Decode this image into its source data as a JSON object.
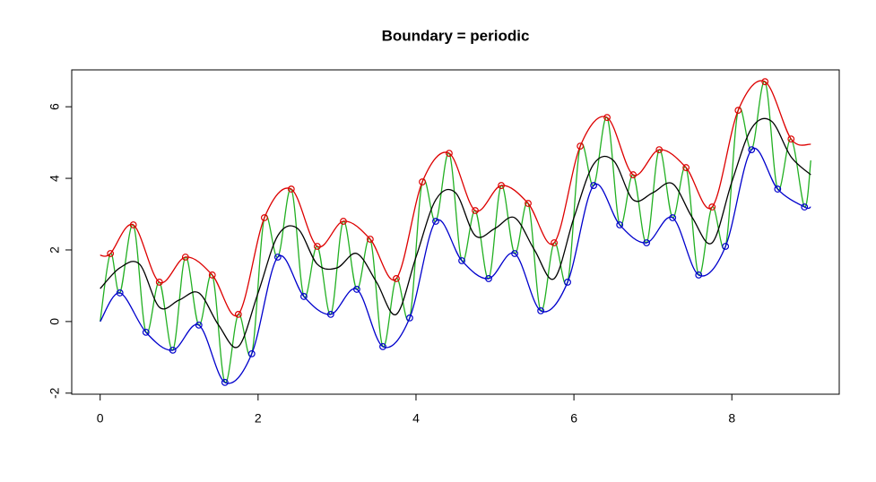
{
  "chart_data": {
    "type": "line",
    "title": "Boundary = periodic",
    "xlim": [
      -0.36,
      9.36
    ],
    "ylim": [
      -2.03,
      7.03
    ],
    "xticks": [
      0,
      2,
      4,
      6,
      8
    ],
    "yticks": [
      -2,
      0,
      2,
      4,
      6
    ],
    "series": [
      {
        "style": "line",
        "color": "#22b022",
        "x": [
          0,
          0.13,
          0.25,
          0.42,
          0.58,
          0.75,
          0.92,
          1.08,
          1.25,
          1.42,
          1.58,
          1.75,
          1.92,
          2.08,
          2.25,
          2.42,
          2.58,
          2.75,
          2.92,
          3.08,
          3.25,
          3.42,
          3.58,
          3.75,
          3.92,
          4.08,
          4.25,
          4.42,
          4.58,
          4.75,
          4.92,
          5.08,
          5.25,
          5.42,
          5.58,
          5.75,
          5.92,
          6.08,
          6.25,
          6.42,
          6.58,
          6.75,
          6.92,
          7.08,
          7.25,
          7.42,
          7.58,
          7.75,
          7.92,
          8.08,
          8.25,
          8.42,
          8.58,
          8.75,
          8.92,
          9
        ],
        "values": [
          0,
          1.9,
          0.8,
          2.7,
          -0.3,
          1.1,
          -0.8,
          1.8,
          -0.1,
          1.3,
          -1.7,
          0.2,
          -0.9,
          2.9,
          1.8,
          3.7,
          0.7,
          2.1,
          0.2,
          2.8,
          0.9,
          2.3,
          -0.7,
          1.2,
          0.1,
          3.9,
          2.8,
          4.7,
          1.7,
          3.1,
          1.2,
          3.8,
          1.9,
          3.3,
          0.3,
          2.2,
          1.1,
          4.9,
          3.8,
          5.7,
          2.7,
          4.1,
          2.2,
          4.8,
          2.9,
          4.3,
          1.3,
          3.2,
          2.1,
          5.9,
          4.8,
          6.7,
          3.7,
          5.1,
          3.2,
          4.5
        ]
      },
      {
        "style": "line",
        "color": "#dd0000",
        "x": [
          0,
          0.13,
          0.42,
          0.75,
          1.08,
          1.42,
          1.75,
          2.08,
          2.42,
          2.75,
          3.08,
          3.42,
          3.75,
          4.08,
          4.42,
          4.75,
          5.08,
          5.42,
          5.75,
          6.08,
          6.42,
          6.75,
          7.08,
          7.42,
          7.75,
          8.08,
          8.42,
          8.75,
          9
        ],
        "values": [
          1.85,
          1.9,
          2.7,
          1.1,
          1.8,
          1.3,
          0.2,
          2.9,
          3.7,
          2.1,
          2.8,
          2.3,
          1.2,
          3.9,
          4.7,
          3.1,
          3.8,
          3.3,
          2.2,
          4.9,
          5.7,
          4.1,
          4.8,
          4.3,
          3.2,
          5.9,
          6.7,
          5.1,
          4.95
        ]
      },
      {
        "style": "line",
        "color": "#0000cc",
        "x": [
          0,
          0.25,
          0.58,
          0.92,
          1.25,
          1.58,
          1.92,
          2.25,
          2.58,
          2.92,
          3.25,
          3.58,
          3.92,
          4.25,
          4.58,
          4.92,
          5.25,
          5.58,
          5.92,
          6.25,
          6.58,
          6.92,
          7.25,
          7.58,
          7.92,
          8.25,
          8.58,
          8.92,
          9
        ],
        "values": [
          0,
          0.8,
          -0.3,
          -0.8,
          -0.1,
          -1.7,
          -0.9,
          1.8,
          0.7,
          0.2,
          0.9,
          -0.7,
          0.1,
          2.8,
          1.7,
          1.2,
          1.9,
          0.3,
          1.1,
          3.8,
          2.7,
          2.2,
          2.9,
          1.3,
          2.1,
          4.8,
          3.7,
          3.2,
          3.2
        ]
      },
      {
        "style": "line",
        "color": "#000000",
        "x": [
          0,
          0.25,
          0.5,
          0.75,
          1,
          1.25,
          1.5,
          1.75,
          2,
          2.25,
          2.5,
          2.75,
          3,
          3.25,
          3.5,
          3.75,
          4,
          4.25,
          4.5,
          4.75,
          5,
          5.25,
          5.5,
          5.75,
          6,
          6.25,
          6.5,
          6.75,
          7,
          7.25,
          7.5,
          7.75,
          8,
          8.25,
          8.5,
          8.75,
          9
        ],
        "values": [
          0.92,
          1.5,
          1.6,
          0.4,
          0.6,
          0.8,
          -0.1,
          -0.7,
          0.8,
          2.4,
          2.6,
          1.6,
          1.5,
          1.9,
          1.1,
          0.2,
          1.8,
          3.4,
          3.6,
          2.4,
          2.6,
          2.9,
          2.0,
          1.2,
          2.9,
          4.4,
          4.5,
          3.4,
          3.6,
          3.85,
          2.9,
          2.2,
          3.9,
          5.4,
          5.6,
          4.6,
          4.1
        ]
      },
      {
        "style": "points",
        "color": "#dd0000",
        "x": [
          0.13,
          0.42,
          0.75,
          1.08,
          1.42,
          1.75,
          2.08,
          2.42,
          2.75,
          3.08,
          3.42,
          3.75,
          4.08,
          4.42,
          4.75,
          5.08,
          5.42,
          5.75,
          6.08,
          6.42,
          6.75,
          7.08,
          7.42,
          7.75,
          8.08,
          8.42,
          8.75
        ],
        "values": [
          1.9,
          2.7,
          1.1,
          1.8,
          1.3,
          0.2,
          2.9,
          3.7,
          2.1,
          2.8,
          2.3,
          1.2,
          3.9,
          4.7,
          3.1,
          3.8,
          3.3,
          2.2,
          4.9,
          5.7,
          4.1,
          4.8,
          4.3,
          3.2,
          5.9,
          6.7,
          5.1
        ]
      },
      {
        "style": "points",
        "color": "#0000cc",
        "x": [
          0.25,
          0.58,
          0.92,
          1.25,
          1.58,
          1.92,
          2.25,
          2.58,
          2.92,
          3.25,
          3.58,
          3.92,
          4.25,
          4.58,
          4.92,
          5.25,
          5.58,
          5.92,
          6.25,
          6.58,
          6.92,
          7.25,
          7.58,
          7.92,
          8.25,
          8.58,
          8.92
        ],
        "values": [
          0.8,
          -0.3,
          -0.8,
          -0.1,
          -1.7,
          -0.9,
          1.8,
          0.7,
          0.2,
          0.9,
          -0.7,
          0.1,
          2.8,
          1.7,
          1.2,
          1.9,
          0.3,
          1.1,
          3.8,
          2.7,
          2.2,
          2.9,
          1.3,
          2.1,
          4.8,
          3.7,
          3.2
        ]
      }
    ]
  }
}
